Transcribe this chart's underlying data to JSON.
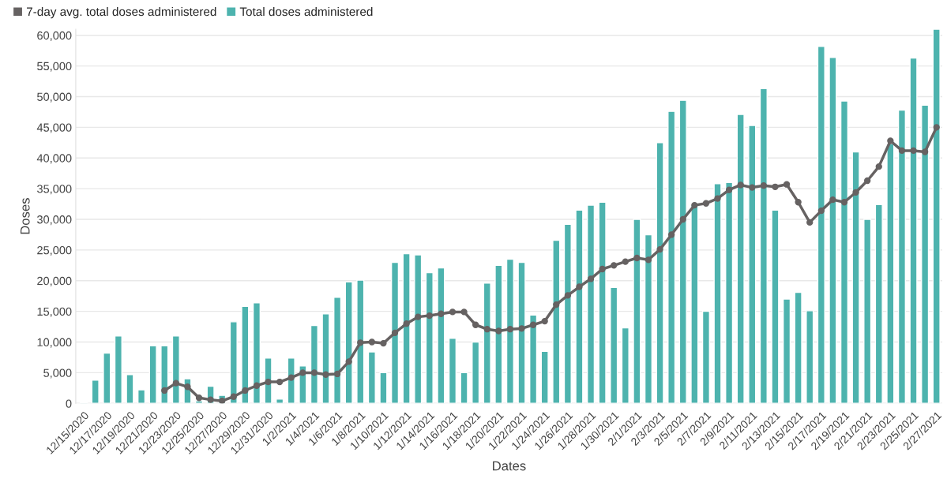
{
  "chart_data": {
    "type": "bar",
    "xlabel": "Dates",
    "ylabel": "Doses",
    "categories": [
      "12/15/2020",
      null,
      "12/17/2020",
      null,
      "12/19/2020",
      null,
      "12/21/2020",
      null,
      "12/23/2020",
      null,
      "12/25/2020",
      null,
      "12/27/2020",
      null,
      "12/29/2020",
      null,
      "12/31/2020",
      null,
      "1/2/2021",
      null,
      "1/4/2021",
      null,
      "1/6/2021",
      null,
      "1/8/2021",
      null,
      "1/10/2021",
      null,
      "1/12/2021",
      null,
      "1/14/2021",
      null,
      "1/16/2021",
      null,
      "1/18/2021",
      null,
      "1/20/2021",
      null,
      "1/22/2021",
      null,
      "1/24/2021",
      null,
      "1/26/2021",
      null,
      "1/28/2021",
      null,
      "1/30/2021",
      null,
      "2/1/2021",
      null,
      "2/3/2021",
      null,
      "2/5/2021",
      null,
      "2/7/2021",
      null,
      "2/9/2021",
      null,
      "2/11/2021",
      null,
      "2/13/2021",
      null,
      "2/15/2021",
      null,
      "2/17/2021",
      null,
      "2/19/2021",
      null,
      "2/21/2021",
      null,
      "2/23/2021",
      null,
      "2/25/2021",
      null,
      "2/27/2021"
    ],
    "series": [
      {
        "name": "7-day avg. total doses administered",
        "type": "line",
        "color": "#666262",
        "values": [
          null,
          null,
          null,
          null,
          null,
          null,
          null,
          2100,
          3300,
          2700,
          900,
          600,
          400,
          1100,
          2100,
          2900,
          3500,
          3500,
          4200,
          5000,
          5000,
          4700,
          4800,
          6800,
          9900,
          10000,
          9800,
          11500,
          13000,
          14100,
          14300,
          14600,
          14900,
          14900,
          12800,
          12100,
          11800,
          12100,
          12200,
          12800,
          13400,
          16100,
          17600,
          19000,
          20300,
          21900,
          22500,
          23100,
          23700,
          23400,
          25100,
          27500,
          30000,
          32300,
          32600,
          33400,
          34800,
          35600,
          35200,
          35500,
          35300,
          35700,
          32800,
          29500,
          31400,
          33200,
          32800,
          34400,
          36300,
          38600,
          42800,
          41200,
          41200,
          41000,
          45000
        ]
      },
      {
        "name": "Total doses administered",
        "color": "#4db3ae",
        "values": [
          200,
          3800,
          8200,
          11000,
          4700,
          2200,
          9400,
          9400,
          11000,
          4000,
          400,
          2800,
          1300,
          13300,
          15800,
          16400,
          7400,
          700,
          7400,
          6100,
          12700,
          14600,
          17300,
          19800,
          20100,
          8400,
          5000,
          23000,
          24400,
          24200,
          21300,
          22100,
          10600,
          5000,
          10000,
          19600,
          22500,
          23500,
          23000,
          14400,
          8500,
          26600,
          29200,
          31500,
          32300,
          32800,
          18900,
          12300,
          30000,
          27500,
          42500,
          47600,
          49400,
          32400,
          15000,
          35800,
          36000,
          47100,
          45300,
          51300,
          31500,
          17000,
          18100,
          15100,
          58200,
          56400,
          49300,
          41000,
          30000,
          32400,
          42300,
          47800,
          56300,
          48600,
          61000
        ]
      }
    ],
    "ylim": [
      0,
      61000
    ],
    "yticks": [
      0,
      {
        "value": 5000,
        "label": "5,000"
      },
      {
        "value": 10000,
        "label": "10,000"
      },
      {
        "value": 15000,
        "label": "15,000"
      },
      {
        "value": 20000,
        "label": "20,000"
      },
      {
        "value": 25000,
        "label": "25,000"
      },
      {
        "value": 30000,
        "label": "30,000"
      },
      {
        "value": 35000,
        "label": "35,000"
      },
      {
        "value": 40000,
        "label": "40,000"
      },
      {
        "value": 45000,
        "label": "45,000"
      },
      {
        "value": 50000,
        "label": "50,000"
      },
      {
        "value": 55000,
        "label": "55,000"
      },
      {
        "value": 60000,
        "label": "60,000"
      }
    ],
    "grid": "y",
    "legend": "top left",
    "marker": "circle",
    "line_style": "solid"
  }
}
